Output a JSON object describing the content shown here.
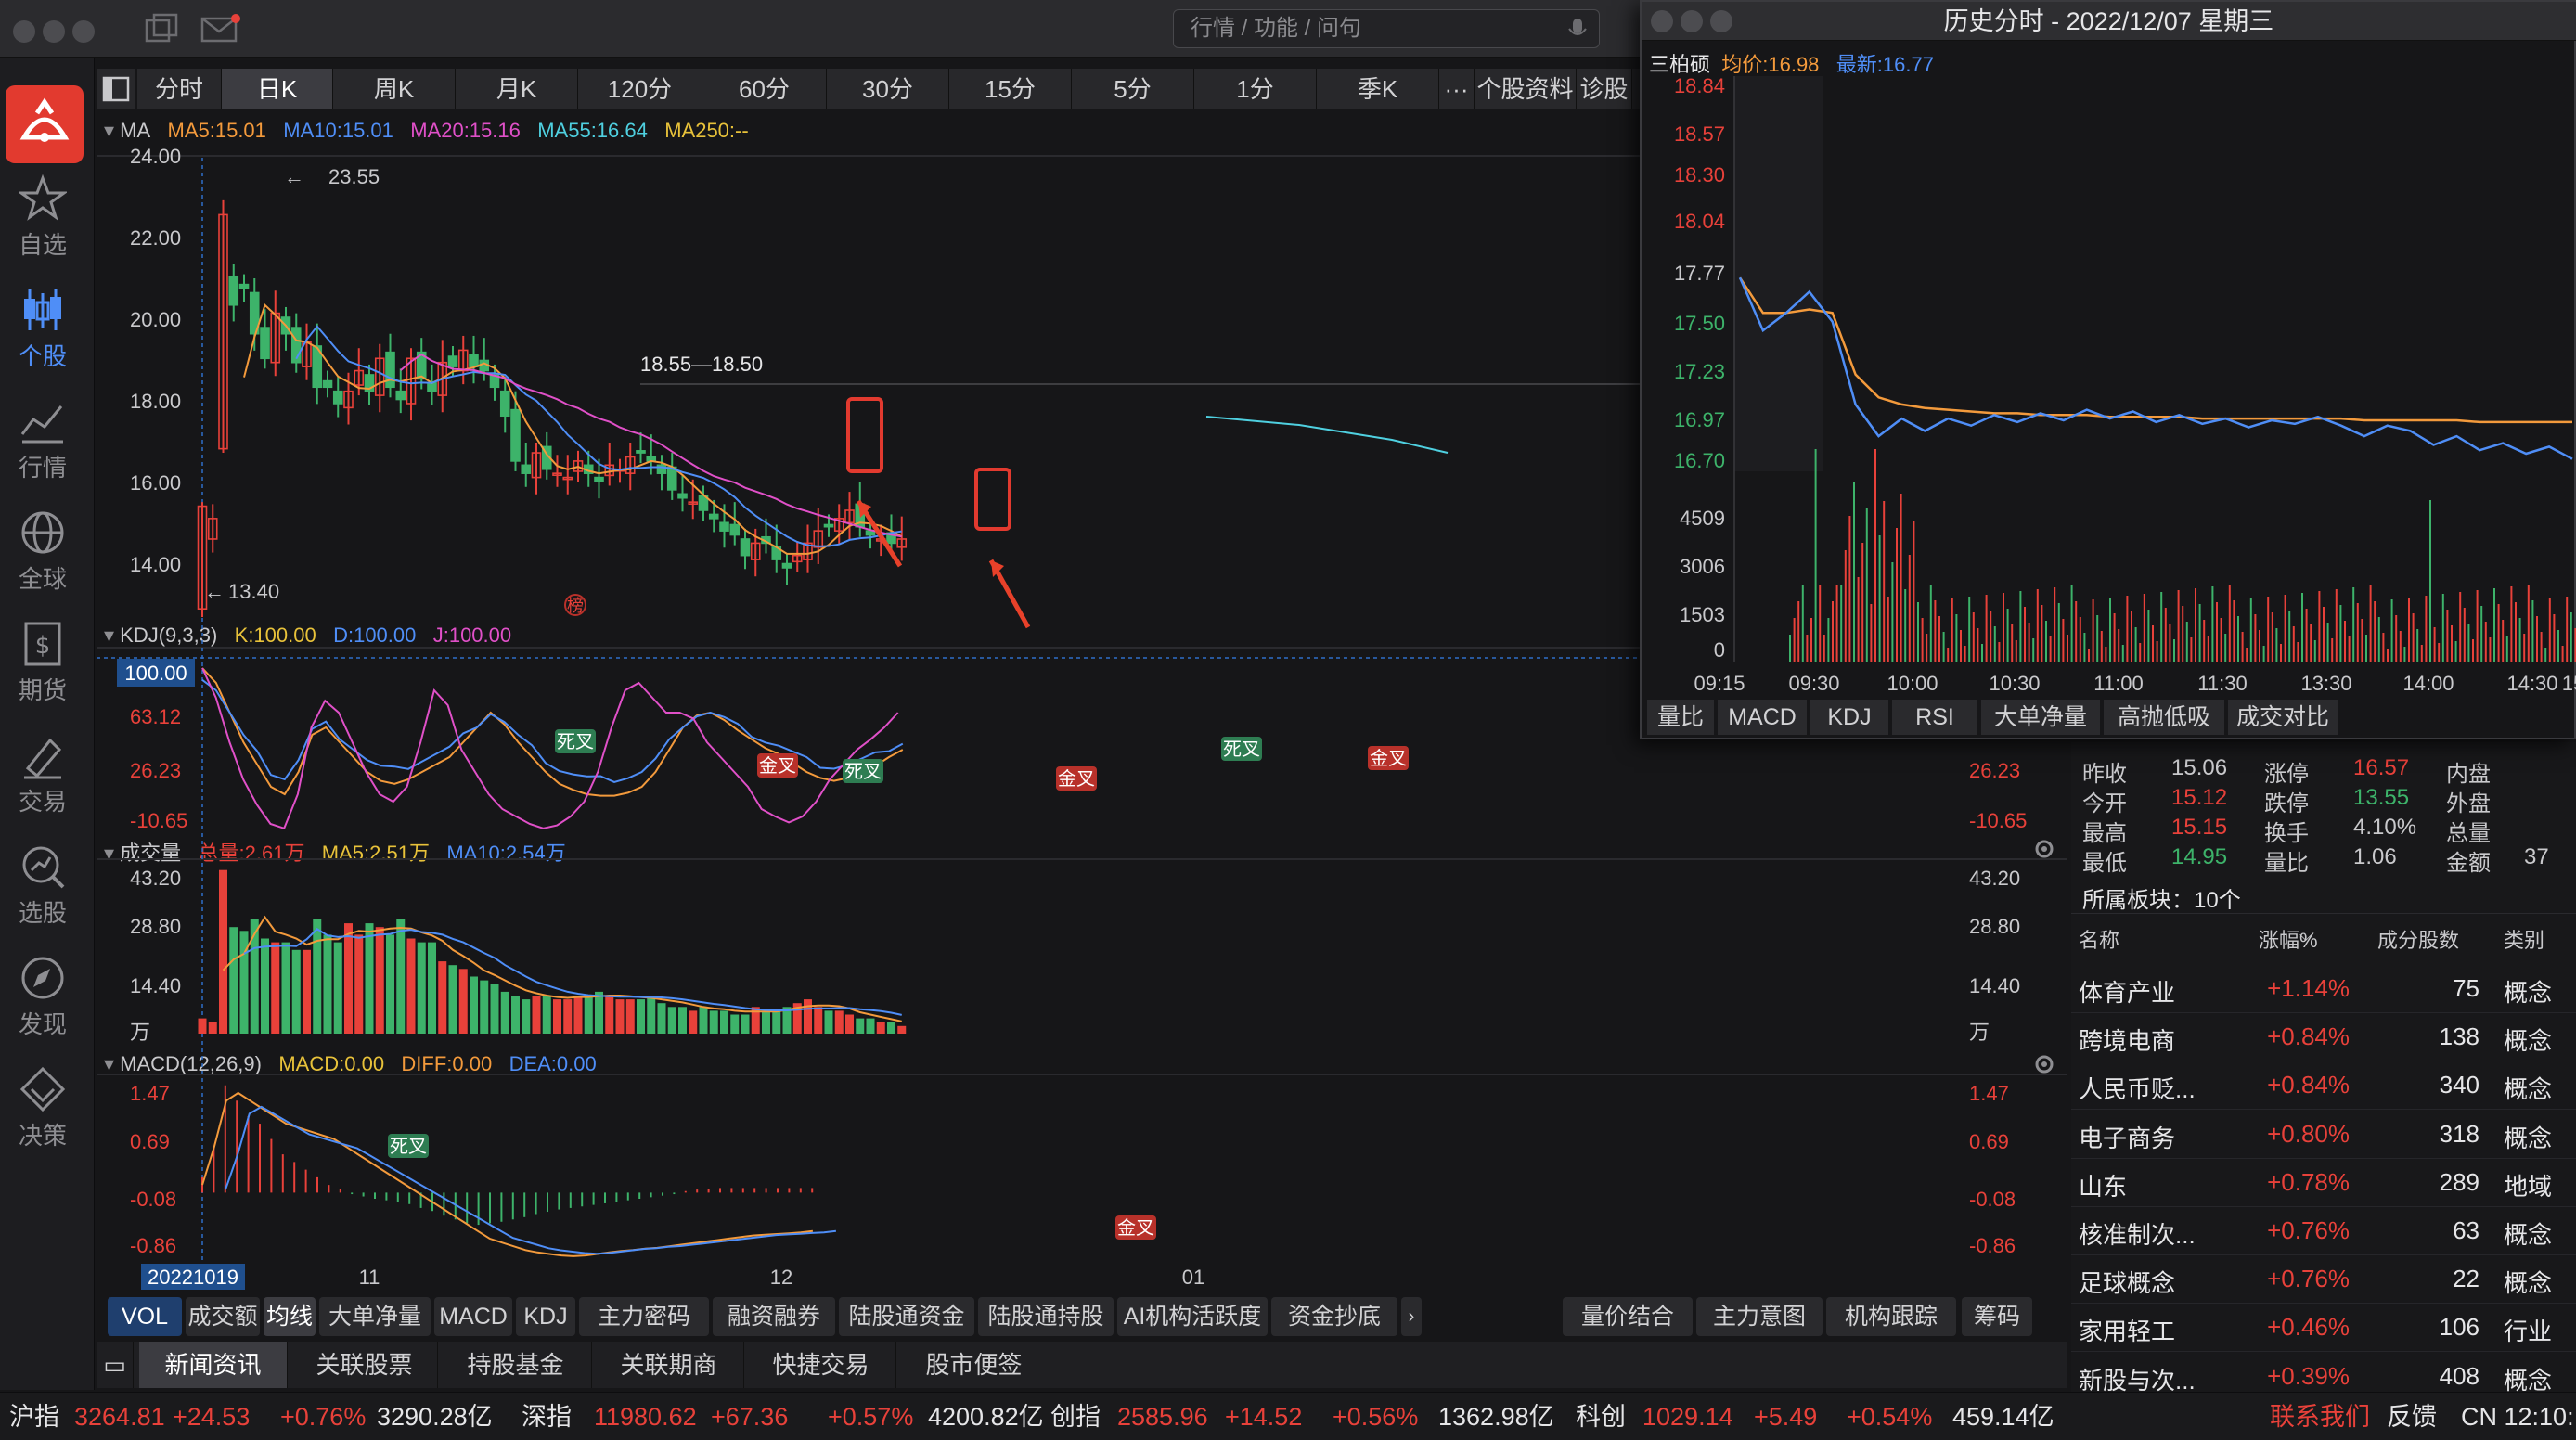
{
  "window": {
    "title": "历史分时 - 2022/12/07 星期三"
  },
  "search": {
    "placeholder": "行情 / 功能 / 问句"
  },
  "rail": [
    {
      "label": "自选",
      "icon": "star-icon"
    },
    {
      "label": "个股",
      "icon": "candlestick-icon",
      "active": true
    },
    {
      "label": "行情",
      "icon": "market-trend-icon"
    },
    {
      "label": "全球",
      "icon": "globe-icon"
    },
    {
      "label": "期货",
      "icon": "futures-icon"
    },
    {
      "label": "交易",
      "icon": "trade-icon"
    },
    {
      "label": "选股",
      "icon": "stock-picker-icon"
    },
    {
      "label": "发现",
      "icon": "compass-icon"
    },
    {
      "label": "决策",
      "icon": "decision-icon"
    }
  ],
  "period_tabs": [
    "分时",
    "日K",
    "周K",
    "月K",
    "120分",
    "60分",
    "30分",
    "15分",
    "5分",
    "1分",
    "季K",
    "···",
    "个股资料",
    "诊股"
  ],
  "ma_legend": {
    "title": "MA",
    "ma5": "MA5:15.01",
    "ma10": "MA10:15.01",
    "ma20": "MA20:15.16",
    "ma55": "MA55:16.64",
    "ma250": "MA250:--"
  },
  "kdj_legend": {
    "title": "KDJ(9,3,3)",
    "k": "K:100.00",
    "d": "D:100.00",
    "j": "J:100.00"
  },
  "vol_legend": {
    "title": "成交量",
    "total": "总量:2.61万",
    "ma5": "MA5:2.51万",
    "ma10": "MA10:2.54万"
  },
  "macd_legend": {
    "title": "MACD(12,26,9)",
    "macd": "MACD:0.00",
    "diff": "DIFF:0.00",
    "dea": "DEA:0.00"
  },
  "kline_axis": {
    "ticks": [
      "24.00",
      "22.00",
      "20.00",
      "18.00",
      "16.00",
      "14.00"
    ],
    "high_label": "23.55",
    "low_label": "13.40",
    "hline_label": "18.55—18.50",
    "rank_badge": "榜",
    "date_label": "20221019",
    "months": [
      "11",
      "12",
      "01"
    ]
  },
  "kdj_axis": {
    "left": [
      "100.00",
      "63.12",
      "26.23",
      "-10.65"
    ],
    "right": [
      "26.23",
      "-10.65"
    ],
    "signals": [
      "死叉",
      "金叉",
      "死叉",
      "金叉",
      "死叉",
      "金叉"
    ]
  },
  "vol_axis": {
    "left": [
      "43.20",
      "28.80",
      "14.40",
      "万"
    ],
    "right": [
      "43.20",
      "28.80",
      "14.40",
      "万"
    ]
  },
  "macd_axis": {
    "left": [
      "1.47",
      "0.69",
      "-0.08",
      "-0.86"
    ],
    "right": [
      "1.47",
      "0.69",
      "-0.08",
      "-0.86"
    ],
    "signals": [
      "死叉",
      "金叉"
    ]
  },
  "indicator_tabs": [
    "VOL",
    "成交额",
    "均线",
    "大单净量",
    "MACD",
    "KDJ",
    "主力密码",
    "融资融券",
    "陆股通资金",
    "陆股通持股",
    "AI机构活跃度",
    "资金抄底"
  ],
  "indicator_tabs_right": [
    "量价结合",
    "主力意图",
    "机构跟踪",
    "筹码"
  ],
  "news_tabs": [
    "新闻资讯",
    "关联股票",
    "持股基金",
    "关联期商",
    "快捷交易",
    "股市便签"
  ],
  "intraday": {
    "stock": "三柏硕",
    "avg": "均价:16.98",
    "latest": "最新:16.77",
    "price_ticks": [
      "18.84",
      "18.57",
      "18.30",
      "18.04",
      "17.77",
      "17.50",
      "17.23",
      "16.97",
      "16.70"
    ],
    "vol_ticks": [
      "4509",
      "3006",
      "1503",
      "0"
    ],
    "time_ticks": [
      "09:15",
      "09:30",
      "10:00",
      "10:30",
      "11:00",
      "11:30",
      "13:30",
      "14:00",
      "14:30",
      "15"
    ],
    "tabs": [
      "量比",
      "MACD",
      "KDJ",
      "RSI",
      "大单净量",
      "高抛低吸",
      "成交对比"
    ],
    "price_series": [
      17.8,
      17.5,
      17.6,
      17.72,
      17.55,
      17.08,
      16.9,
      17.0,
      16.93,
      17.0,
      16.96,
      17.02,
      16.98,
      17.03,
      16.99,
      17.05,
      17.0,
      17.04,
      16.98,
      17.02,
      16.97,
      17.0,
      16.95,
      16.99,
      16.97,
      17.01,
      16.96,
      16.9,
      16.96,
      16.93,
      16.85,
      16.9,
      16.82,
      16.86,
      16.8,
      16.84,
      16.77
    ],
    "avg_series": [
      17.8,
      17.6,
      17.6,
      17.62,
      17.6,
      17.25,
      17.12,
      17.08,
      17.06,
      17.05,
      17.04,
      17.03,
      17.03,
      17.02,
      17.02,
      17.02,
      17.01,
      17.01,
      17.01,
      17.01,
      17.0,
      17.0,
      17.0,
      17.0,
      17.0,
      17.0,
      17.0,
      16.99,
      16.99,
      16.99,
      16.99,
      16.99,
      16.98,
      16.98,
      16.98,
      16.98,
      16.98
    ],
    "price_min": 16.7,
    "price_max": 18.84
  },
  "quote": {
    "rows": [
      [
        {
          "l": "昨收",
          "v": "15.06"
        },
        {
          "l": "涨停",
          "v": "16.57",
          "c": "red"
        },
        {
          "l": "内盘",
          "v": ""
        }
      ],
      [
        {
          "l": "今开",
          "v": "15.12",
          "c": "red"
        },
        {
          "l": "跌停",
          "v": "13.55",
          "c": "green"
        },
        {
          "l": "外盘",
          "v": ""
        }
      ],
      [
        {
          "l": "最高",
          "v": "15.15",
          "c": "red"
        },
        {
          "l": "换手",
          "v": "4.10%"
        },
        {
          "l": "总量",
          "v": ""
        }
      ],
      [
        {
          "l": "最低",
          "v": "14.95",
          "c": "green"
        },
        {
          "l": "量比",
          "v": "1.06"
        },
        {
          "l": "金额",
          "v": "37"
        }
      ]
    ],
    "sector_count": "所属板块：10个"
  },
  "sectors": {
    "headers": [
      "名称",
      "涨幅%",
      "成分股数",
      "类别"
    ],
    "rows": [
      {
        "name": "体育产业",
        "chg": "+1.14%",
        "count": "75",
        "type": "概念"
      },
      {
        "name": "跨境电商",
        "chg": "+0.84%",
        "count": "138",
        "type": "概念"
      },
      {
        "name": "人民币贬...",
        "chg": "+0.84%",
        "count": "340",
        "type": "概念"
      },
      {
        "name": "电子商务",
        "chg": "+0.80%",
        "count": "318",
        "type": "概念"
      },
      {
        "name": "山东",
        "chg": "+0.78%",
        "count": "289",
        "type": "地域"
      },
      {
        "name": "核准制次...",
        "chg": "+0.76%",
        "count": "63",
        "type": "概念"
      },
      {
        "name": "足球概念",
        "chg": "+0.76%",
        "count": "22",
        "type": "概念"
      },
      {
        "name": "家用轻工",
        "chg": "+0.46%",
        "count": "106",
        "type": "行业"
      },
      {
        "name": "新股与次...",
        "chg": "+0.39%",
        "count": "408",
        "type": "概念"
      }
    ]
  },
  "status": {
    "items": [
      {
        "name": "沪指",
        "val": "3264.81",
        "chg": "+24.53",
        "pct": "+0.76%",
        "amt": "3290.28亿"
      },
      {
        "name": "深指",
        "val": "11980.62",
        "chg": "+67.36",
        "pct": "+0.57%",
        "amt": "4200.82亿"
      },
      {
        "name": "创指",
        "val": "2585.96",
        "chg": "+14.52",
        "pct": "+0.56%",
        "amt": "1362.98亿"
      },
      {
        "name": "科创",
        "val": "1029.14",
        "chg": "+5.49",
        "pct": "+0.54%",
        "amt": "459.14亿"
      }
    ],
    "contact": "联系我们",
    "feedback": "反馈",
    "clock": "CN 12:10:"
  },
  "colors": {
    "up": "#e8413a",
    "down": "#3db36a",
    "ma5": "#f39a3c",
    "ma10": "#4f8ef7",
    "ma20": "#e050c8",
    "ma55": "#4fd0e0",
    "ma250": "#e8c23a"
  }
}
